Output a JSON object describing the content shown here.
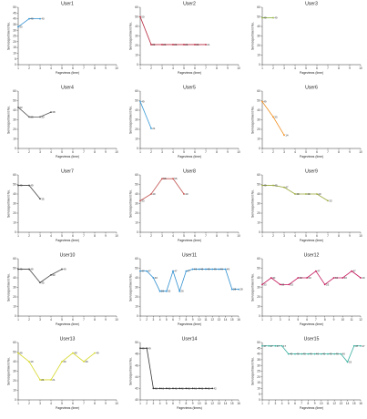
{
  "figure": {
    "background": "#ffffff"
  },
  "chart_data": [
    {
      "type": "line",
      "title": "User1",
      "xlabel": "Pageviews (time)",
      "ylabel": "Serviceportment No.",
      "x_ticks": [
        1,
        2,
        3,
        4,
        5,
        6,
        7,
        8,
        9,
        10
      ],
      "y_ticks": [
        0,
        5,
        10,
        15,
        20,
        25,
        30,
        35,
        40,
        45,
        50
      ],
      "xlim": [
        1,
        10
      ],
      "ylim": [
        0,
        50
      ],
      "color": "#2f8fd0",
      "series": [
        {
          "x": [
            1,
            2,
            3
          ],
          "values": [
            33,
            40,
            40
          ]
        }
      ]
    },
    {
      "type": "line",
      "title": "User2",
      "xlabel": "Pageviews (time)",
      "ylabel": "Serviceportment No.",
      "x_ticks": [
        1,
        2,
        3,
        4,
        5,
        6,
        7,
        8,
        9,
        10
      ],
      "y_ticks": [
        0,
        10,
        20,
        30,
        40,
        50,
        60
      ],
      "xlim": [
        1,
        10
      ],
      "ylim": [
        0,
        60
      ],
      "color": "#b7283e",
      "series": [
        {
          "x": [
            1,
            2,
            3,
            4,
            5,
            6,
            7
          ],
          "values": [
            50,
            21,
            21,
            21,
            21,
            21,
            21
          ]
        }
      ]
    },
    {
      "type": "line",
      "title": "User3",
      "xlabel": "Pageviews (time)",
      "ylabel": "Serviceportment No.",
      "x_ticks": [
        1,
        2,
        3,
        4,
        5,
        6,
        7,
        8,
        9,
        10
      ],
      "y_ticks": [
        0,
        10,
        20,
        30,
        40,
        50,
        60
      ],
      "xlim": [
        1,
        10
      ],
      "ylim": [
        0,
        60
      ],
      "color": "#8cb43a",
      "series": [
        {
          "x": [
            1,
            2
          ],
          "values": [
            49,
            49
          ]
        }
      ]
    },
    {
      "type": "line",
      "title": "User4",
      "xlabel": "Pageviews (time)",
      "ylabel": "Serviceportment No.",
      "x_ticks": [
        1,
        2,
        3,
        4,
        5,
        6,
        7,
        8,
        9,
        10
      ],
      "y_ticks": [
        0,
        10,
        20,
        30,
        40,
        50,
        60
      ],
      "xlim": [
        1,
        10
      ],
      "ylim": [
        0,
        60
      ],
      "color": "#555555",
      "series": [
        {
          "x": [
            1,
            2,
            3,
            4
          ],
          "values": [
            43,
            33,
            33,
            38
          ]
        }
      ]
    },
    {
      "type": "line",
      "title": "User5",
      "xlabel": "Pageviews (time)",
      "ylabel": "Serviceportment No.",
      "x_ticks": [
        1,
        2,
        3,
        4,
        5,
        6,
        7,
        8,
        9,
        10
      ],
      "y_ticks": [
        0,
        10,
        20,
        30,
        40,
        50,
        60
      ],
      "xlim": [
        1,
        10
      ],
      "ylim": [
        0,
        60
      ],
      "color": "#3a9bd8",
      "series": [
        {
          "x": [
            1,
            2
          ],
          "values": [
            49,
            21
          ]
        }
      ]
    },
    {
      "type": "line",
      "title": "User6",
      "xlabel": "Pageviews (time)",
      "ylabel": "Serviceportment No.",
      "x_ticks": [
        1,
        2,
        3,
        4,
        5,
        6,
        7,
        8,
        9,
        10
      ],
      "y_ticks": [
        0,
        10,
        20,
        30,
        40,
        50,
        60
      ],
      "xlim": [
        1,
        10
      ],
      "ylim": [
        0,
        60
      ],
      "color": "#f08c1a",
      "series": [
        {
          "x": [
            1,
            2,
            3
          ],
          "values": [
            49,
            33,
            14
          ]
        }
      ]
    },
    {
      "type": "line",
      "title": "User7",
      "xlabel": "Pageviews (time)",
      "ylabel": "Serviceportment No.",
      "x_ticks": [
        1,
        2,
        3,
        4,
        5,
        6,
        7,
        8,
        9,
        10
      ],
      "y_ticks": [
        0,
        10,
        20,
        30,
        40,
        50,
        60
      ],
      "xlim": [
        1,
        10
      ],
      "ylim": [
        0,
        60
      ],
      "color": "#444444",
      "series": [
        {
          "x": [
            1,
            2,
            3
          ],
          "values": [
            49,
            49,
            35
          ]
        }
      ]
    },
    {
      "type": "line",
      "title": "User8",
      "xlabel": "Pageviews (time)",
      "ylabel": "Serviceportment No.",
      "x_ticks": [
        1,
        2,
        3,
        4,
        5,
        6,
        7,
        8,
        9,
        10
      ],
      "y_ticks": [
        0,
        10,
        20,
        30,
        40,
        50,
        60
      ],
      "xlim": [
        1,
        10
      ],
      "ylim": [
        0,
        60
      ],
      "color": "#c0504d",
      "series": [
        {
          "x": [
            1,
            2,
            3,
            4,
            5
          ],
          "values": [
            33,
            40,
            56,
            56,
            40
          ]
        }
      ]
    },
    {
      "type": "line",
      "title": "User9",
      "xlabel": "Pageviews (time)",
      "ylabel": "Serviceportment No.",
      "x_ticks": [
        1,
        2,
        3,
        4,
        5,
        6,
        7,
        8,
        9,
        10
      ],
      "y_ticks": [
        0,
        10,
        20,
        30,
        40,
        50,
        60
      ],
      "xlim": [
        1,
        10
      ],
      "ylim": [
        0,
        60
      ],
      "color": "#9aa83a",
      "series": [
        {
          "x": [
            1,
            2,
            3,
            4,
            5,
            6,
            7
          ],
          "values": [
            49,
            49,
            47,
            40,
            40,
            40,
            33
          ]
        }
      ]
    },
    {
      "type": "line",
      "title": "User10",
      "xlabel": "Pageviews (time)",
      "ylabel": "Serviceportment No.",
      "x_ticks": [
        1,
        2,
        3,
        4,
        5,
        6,
        7,
        8,
        9,
        10
      ],
      "y_ticks": [
        0,
        10,
        20,
        30,
        40,
        50,
        60
      ],
      "xlim": [
        1,
        10
      ],
      "ylim": [
        0,
        60
      ],
      "color": "#444444",
      "series": [
        {
          "x": [
            1,
            2,
            3,
            4,
            5
          ],
          "values": [
            49,
            49,
            35,
            43,
            49
          ]
        }
      ]
    },
    {
      "type": "line",
      "title": "User11",
      "xlabel": "Pageviews (time)",
      "ylabel": "Serviceportment No.",
      "x_ticks": [
        1,
        2,
        3,
        4,
        5,
        6,
        7,
        8,
        9,
        10,
        11,
        12,
        13,
        14,
        15,
        16
      ],
      "y_ticks": [
        0,
        10,
        20,
        30,
        40,
        50,
        60
      ],
      "xlim": [
        1,
        16
      ],
      "ylim": [
        0,
        60
      ],
      "color": "#2f8fd0",
      "series": [
        {
          "x": [
            1,
            2,
            3,
            4,
            5,
            6,
            7,
            8,
            9,
            10,
            11,
            12,
            13,
            14,
            15,
            16
          ],
          "values": [
            47,
            47,
            40,
            26,
            26,
            47,
            26,
            47,
            49,
            49,
            49,
            49,
            49,
            49,
            28,
            28
          ]
        }
      ]
    },
    {
      "type": "line",
      "title": "User12",
      "xlabel": "Pageviews (time)",
      "ylabel": "Serviceportment No.",
      "x_ticks": [
        1,
        2,
        3,
        4,
        5,
        6,
        7,
        8,
        9,
        10,
        11,
        12
      ],
      "y_ticks": [
        0,
        10,
        20,
        30,
        40,
        50,
        60
      ],
      "xlim": [
        1,
        12
      ],
      "ylim": [
        0,
        60
      ],
      "color": "#c2185b",
      "series": [
        {
          "x": [
            1,
            2,
            3,
            4,
            5,
            6,
            7,
            8,
            9,
            10,
            11,
            12
          ],
          "values": [
            33,
            40,
            33,
            33,
            40,
            40,
            47,
            33,
            40,
            40,
            47,
            40
          ]
        }
      ]
    },
    {
      "type": "line",
      "title": "User13",
      "xlabel": "Pageviews (time)",
      "ylabel": "Serviceportment No.",
      "x_ticks": [
        1,
        2,
        3,
        4,
        5,
        6,
        7,
        8,
        9,
        10
      ],
      "y_ticks": [
        0,
        10,
        20,
        30,
        40,
        50,
        60
      ],
      "xlim": [
        1,
        10
      ],
      "ylim": [
        0,
        60
      ],
      "color": "#d6d82a",
      "series": [
        {
          "x": [
            1,
            2,
            3,
            4,
            5,
            6,
            7,
            8
          ],
          "values": [
            49,
            40,
            21,
            21,
            40,
            49,
            40,
            49
          ]
        }
      ]
    },
    {
      "type": "line",
      "title": "User14",
      "xlabel": "Pageviews (times)",
      "ylabel": "Serviceportment No.",
      "x_ticks": [
        1,
        2,
        3,
        4,
        5,
        6,
        7,
        8,
        9,
        10,
        11,
        12,
        13,
        14,
        15,
        16
      ],
      "y_ticks": [
        40,
        42,
        44,
        46,
        48,
        50
      ],
      "xlim": [
        1,
        16
      ],
      "ylim": [
        40,
        50
      ],
      "color": "#333333",
      "series": [
        {
          "x": [
            1,
            2,
            3,
            4,
            5,
            6,
            7,
            8,
            9,
            10,
            11,
            12
          ],
          "values": [
            49,
            49,
            42,
            42,
            42,
            42,
            42,
            42,
            42,
            42,
            42,
            42
          ]
        }
      ]
    },
    {
      "type": "line",
      "title": "User15",
      "xlabel": "Pageviews (time)",
      "ylabel": "Serviceportment No.",
      "x_ticks": [
        1,
        2,
        3,
        4,
        5,
        6,
        7,
        8,
        9,
        10,
        11,
        12,
        13,
        14,
        15,
        16
      ],
      "y_ticks": [
        0,
        5,
        10,
        15,
        20,
        25,
        30,
        35,
        40,
        45,
        50
      ],
      "xlim": [
        1,
        16
      ],
      "ylim": [
        0,
        50
      ],
      "color": "#3ab0a0",
      "series": [
        {
          "x": [
            1,
            2,
            3,
            4,
            5,
            6,
            7,
            8,
            9,
            10,
            11,
            12,
            13,
            14,
            15,
            16
          ],
          "values": [
            47,
            47,
            47,
            47,
            40,
            40,
            40,
            40,
            40,
            40,
            40,
            40,
            40,
            33,
            47,
            47
          ]
        }
      ]
    }
  ]
}
